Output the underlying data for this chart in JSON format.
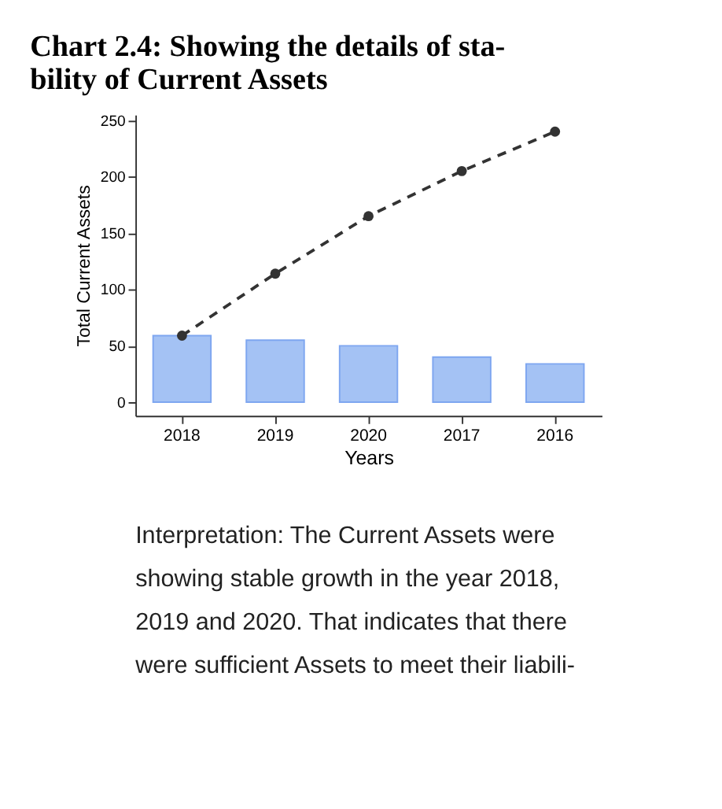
{
  "chart_data": {
    "type": "bar",
    "title": "Chart 2.4: Showing the details of sta-\nbility of Current Assets",
    "xlabel": "Years",
    "ylabel": "Total Current Assets",
    "categories": [
      "2018",
      "2019",
      "2020",
      "2017",
      "2016"
    ],
    "series": [
      {
        "color": "#a4c2f4",
        "values": [
          59,
          55,
          50,
          40,
          34
        ]
      },
      {
        "type": "line",
        "color": "#333333",
        "values": [
          59,
          114,
          165,
          205,
          240
        ],
        "marker": "circle",
        "line_style": "dashed"
      }
    ],
    "ylim": [
      -12,
      255
    ],
    "yticks": [
      0,
      50,
      100,
      150,
      200,
      250
    ],
    "grid": false,
    "annotations": [
      "Interpretation: The Current Assets were\nshowing stable growth in the year 2018,\n2019 and 2020.  That indicates that there\nwere sufficient Assets to meet their liabili-"
    ]
  }
}
